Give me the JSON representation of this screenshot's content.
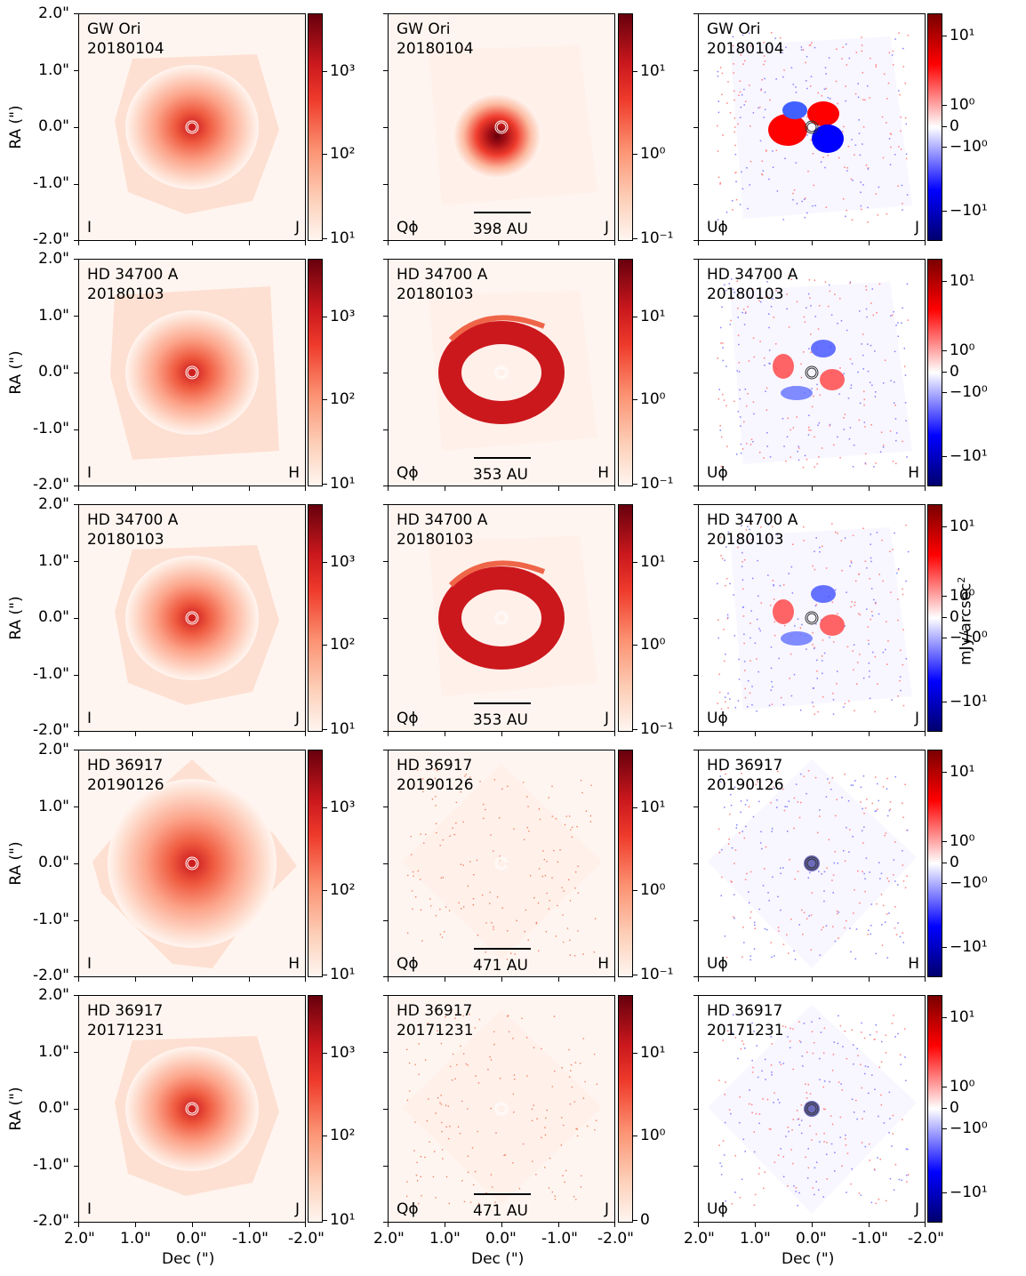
{
  "figure": {
    "xlabel": "Dec (\")",
    "ylabel": "RA (\")",
    "colorbar_label": "mJy/arcsec",
    "colorbar_label_sup": "2",
    "ytick_labels": [
      "2.0\"",
      "1.0\"",
      "0.0\"",
      "-1.0\"",
      "-2.0\""
    ],
    "xtick_labels": [
      "2.0\"",
      "1.0\"",
      "0.0\"",
      "-1.0\"",
      "-2.0\""
    ],
    "rows": [
      {
        "target": "GW Ori",
        "date": "20180104",
        "band": "J",
        "scale": "398 AU",
        "cb_I": [
          "10³",
          "10²",
          "10¹"
        ],
        "cb_Q": [
          "10¹",
          "10⁰",
          "10⁻¹"
        ],
        "cb_U": [
          "10¹",
          "10⁰",
          "0",
          "−10⁰",
          "−10¹"
        ]
      },
      {
        "target": "HD 34700 A",
        "date": "20180103",
        "band": "H",
        "scale": "353 AU",
        "cb_I": [
          "10³",
          "10²",
          "10¹"
        ],
        "cb_Q": [
          "10¹",
          "10⁰",
          "10⁻¹"
        ],
        "cb_U": [
          "10¹",
          "10⁰",
          "0",
          "−10⁰",
          "−10¹"
        ]
      },
      {
        "target": "HD 34700 A",
        "date": "20180103",
        "band": "J",
        "scale": "353 AU",
        "cb_I": [
          "10³",
          "10²",
          "10¹"
        ],
        "cb_Q": [
          "10¹",
          "10⁰",
          "10⁻¹"
        ],
        "cb_U": [
          "10¹",
          "10⁰",
          "0",
          "−10⁰",
          "−10¹"
        ]
      },
      {
        "target": "HD 36917",
        "date": "20190126",
        "band": "H",
        "scale": "471 AU",
        "cb_I": [
          "10³",
          "10²",
          "10¹"
        ],
        "cb_Q": [
          "10¹",
          "10⁰",
          "10⁻¹"
        ],
        "cb_U": [
          "10¹",
          "10⁰",
          "0",
          "−10⁰",
          "−10¹"
        ]
      },
      {
        "target": "HD 36917",
        "date": "20171231",
        "band": "J",
        "scale": "471 AU",
        "cb_I": [
          "10³",
          "10²",
          "10¹"
        ],
        "cb_Q": [
          "10¹",
          "10⁰",
          "0"
        ],
        "cb_U": [
          "10¹",
          "10⁰",
          "0",
          "−10⁰",
          "−10¹"
        ]
      }
    ],
    "stokes": {
      "I": "I",
      "Q": "Qϕ",
      "U": "Uϕ"
    }
  }
}
